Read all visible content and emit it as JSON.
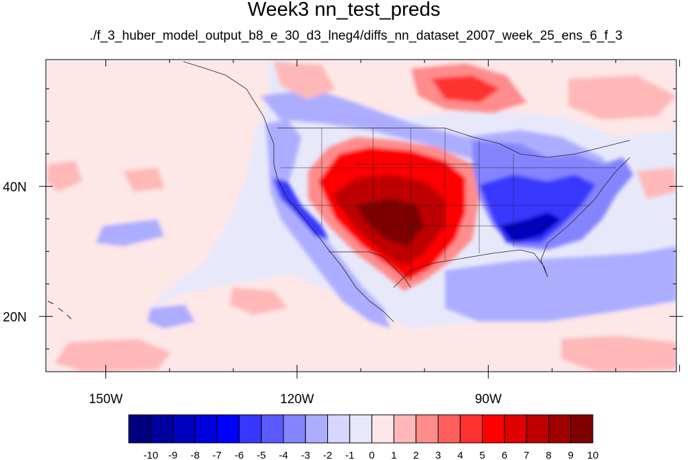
{
  "title": "Week3 nn_test_preds",
  "subtitle": "./f_3_huber_model_output_b8_e_30_d3_lneg4/diffs_nn_dataset_2007_week_25_ens_6_f_3",
  "lon_ticks": [
    {
      "value": -150,
      "label": "150W"
    },
    {
      "value": -120,
      "label": "120W"
    },
    {
      "value": -90,
      "label": "90W"
    }
  ],
  "lat_ticks": [
    {
      "value": 40,
      "label": "40N"
    },
    {
      "value": 20,
      "label": "20N"
    }
  ],
  "map_extent": {
    "lon_min": -159.4,
    "lon_max": -60.5,
    "lat_min": 11.5,
    "lat_max": 59.5
  },
  "colorbar": {
    "levels": [
      "-10",
      "-9",
      "-8",
      "-7",
      "-6",
      "-5",
      "-4",
      "-3",
      "-2",
      "-1",
      "0",
      "1",
      "2",
      "3",
      "4",
      "5",
      "6",
      "7",
      "8",
      "9",
      "10"
    ],
    "colors": [
      "#00007f",
      "#00009f",
      "#0000bf",
      "#0000df",
      "#0000ff",
      "#3737ff",
      "#5a5aff",
      "#8484ff",
      "#adadff",
      "#d6d6ff",
      "#e8e8fb",
      "#fde7e7",
      "#ffb8b8",
      "#ff8c8c",
      "#ff5e5e",
      "#ff3030",
      "#ff0000",
      "#df0000",
      "#bf0000",
      "#9f0000",
      "#7f0000"
    ]
  }
}
